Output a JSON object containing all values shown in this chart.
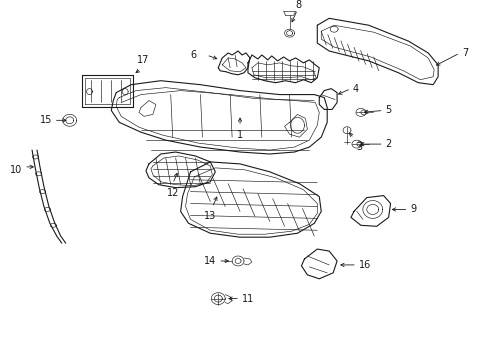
{
  "background_color": "#ffffff",
  "line_color": "#1a1a1a",
  "label_color": "#000000",
  "fig_width": 4.89,
  "fig_height": 3.6,
  "dpi": 100,
  "label_fontsize": 7.0
}
